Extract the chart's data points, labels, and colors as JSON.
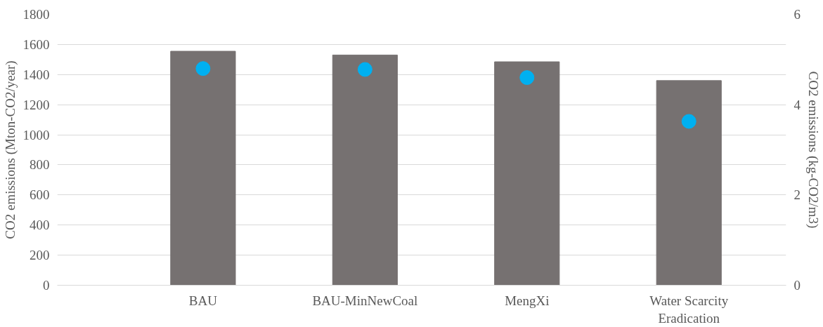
{
  "chart_data": {
    "type": "bar",
    "categories": [
      "BAU",
      "BAU-MinNewCoal",
      "MengXi",
      "Water Scarcity Eradication"
    ],
    "ylabel": "CO2 emissions (Mton-CO2/year)",
    "y2label": "CO2 emissions (kg-CO2/m3)",
    "ylim": [
      0,
      1800
    ],
    "yticks": [
      0,
      200,
      400,
      600,
      800,
      1000,
      1200,
      1400,
      1600,
      1800
    ],
    "y2lim": [
      0,
      6
    ],
    "y2ticks": [
      0,
      2,
      4,
      6
    ],
    "grid": "y",
    "series": [
      {
        "color": "#767171",
        "values": [
          1555,
          1530,
          1485,
          1360
        ]
      },
      {
        "type": "scatter",
        "axis": "y2",
        "marker": "circle",
        "color": "#00b0f0",
        "values": [
          4.8,
          4.78,
          4.6,
          3.63
        ]
      }
    ]
  }
}
